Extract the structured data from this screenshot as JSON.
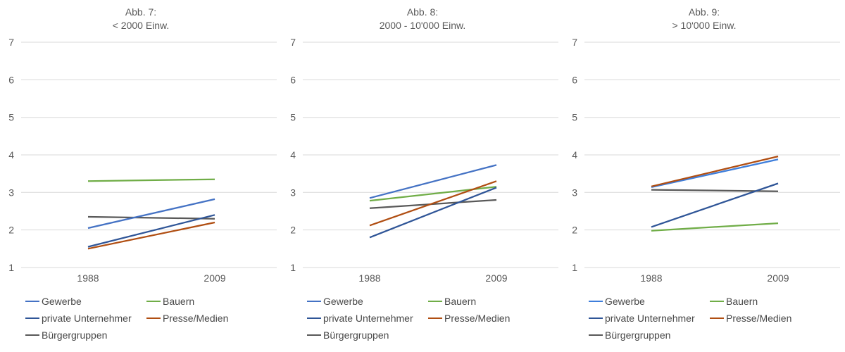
{
  "chart_data": [
    {
      "type": "line",
      "title_lines": [
        "Abb. 7:",
        "< 2000 Einw."
      ],
      "x_categories": [
        "1988",
        "2009"
      ],
      "ylim": [
        1,
        7
      ],
      "yticks": [
        1,
        2,
        3,
        4,
        5,
        6,
        7
      ],
      "grid": true,
      "legend_position": "bottom-left",
      "series": [
        {
          "name": "Gewerbe",
          "color": "#4472C4",
          "values": [
            2.05,
            2.82
          ]
        },
        {
          "name": "Bauern",
          "color": "#70AD47",
          "values": [
            3.3,
            3.35
          ]
        },
        {
          "name": "private Unternehmer",
          "color": "#2F5597",
          "values": [
            1.55,
            2.4
          ]
        },
        {
          "name": "Presse/Medien",
          "color": "#B04E12",
          "values": [
            1.5,
            2.2
          ]
        },
        {
          "name": "Bürgergruppen",
          "color": "#595959",
          "values": [
            2.35,
            2.3
          ]
        }
      ]
    },
    {
      "type": "line",
      "title_lines": [
        "Abb. 8:",
        "2000 - 10'000 Einw."
      ],
      "x_categories": [
        "1988",
        "2009"
      ],
      "ylim": [
        1,
        7
      ],
      "yticks": [
        1,
        2,
        3,
        4,
        5,
        6,
        7
      ],
      "grid": true,
      "legend_position": "bottom-left",
      "series": [
        {
          "name": "Gewerbe",
          "color": "#4472C4",
          "values": [
            2.85,
            3.73
          ]
        },
        {
          "name": "Bauern",
          "color": "#70AD47",
          "values": [
            2.78,
            3.15
          ]
        },
        {
          "name": "private Unternehmer",
          "color": "#2F5597",
          "values": [
            1.8,
            3.13
          ]
        },
        {
          "name": "Presse/Medien",
          "color": "#B04E12",
          "values": [
            2.12,
            3.3
          ]
        },
        {
          "name": "Bürgergruppen",
          "color": "#595959",
          "values": [
            2.58,
            2.8
          ]
        }
      ]
    },
    {
      "type": "line",
      "title_lines": [
        "Abb. 9:",
        "> 10'000 Einw."
      ],
      "x_categories": [
        "1988",
        "2009"
      ],
      "ylim": [
        1,
        7
      ],
      "yticks": [
        1,
        2,
        3,
        4,
        5,
        6,
        7
      ],
      "grid": true,
      "legend_position": "bottom-left",
      "series": [
        {
          "name": "Gewerbe",
          "color": "#3E7EDB",
          "values": [
            3.14,
            3.88
          ]
        },
        {
          "name": "Bauern",
          "color": "#70AD47",
          "values": [
            1.98,
            2.18
          ]
        },
        {
          "name": "private Unternehmer",
          "color": "#2F5597",
          "values": [
            2.08,
            3.24
          ]
        },
        {
          "name": "Presse/Medien",
          "color": "#B04E12",
          "values": [
            3.16,
            3.96
          ]
        },
        {
          "name": "Bürgergruppen",
          "color": "#595959",
          "values": [
            3.07,
            3.03
          ]
        }
      ]
    }
  ],
  "style": {
    "gridline_color": "#D9D9D9",
    "tick_label_color": "#595959",
    "legend_text_color": "#474747"
  }
}
